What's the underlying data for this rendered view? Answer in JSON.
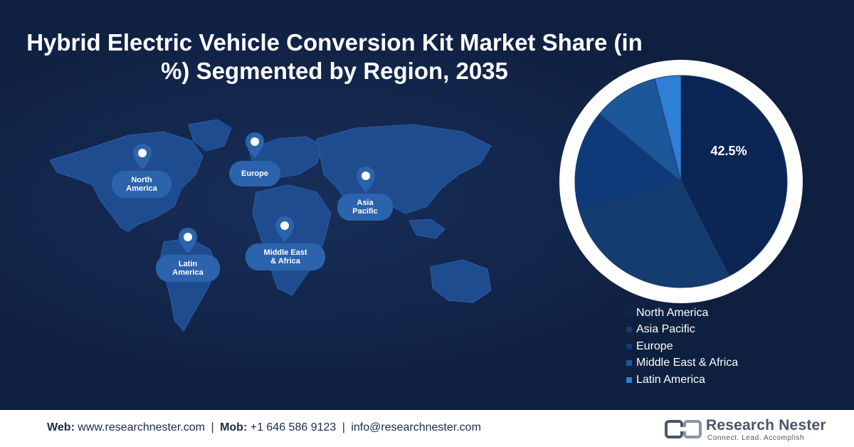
{
  "chart_data": {
    "type": "pie",
    "title": "Hybrid Electric Vehicle Conversion Kit Market Share (in %) Segmented by Region, 2035",
    "series": [
      {
        "name": "North America",
        "value": 42.5,
        "label": "42.5%",
        "color": "#0b2554"
      },
      {
        "name": "Asia Pacific",
        "value": 28.0,
        "label": "",
        "color": "#143c6e"
      },
      {
        "name": "Europe",
        "value": 15.5,
        "label": "",
        "color": "#0e3a7a"
      },
      {
        "name": "Middle East & Africa",
        "value": 10.0,
        "label": "",
        "color": "#1c5799"
      },
      {
        "name": "Latin America",
        "value": 4.0,
        "label": "",
        "color": "#2f7fd6"
      }
    ],
    "legend_position": "bottom-right"
  },
  "map": {
    "regions": [
      {
        "label": "North\nAmerica",
        "icon": "location-pin-icon"
      },
      {
        "label": "Europe",
        "icon": "location-pin-icon"
      },
      {
        "label": "Asia\nPacific",
        "icon": "location-pin-icon"
      },
      {
        "label": "Latin\nAmerica",
        "icon": "location-pin-icon"
      },
      {
        "label": "Middle East\n& Africa",
        "icon": "location-pin-icon"
      }
    ]
  },
  "footer": {
    "web_label": "Web:",
    "web_value": "www.researchnester.com",
    "mob_label": "Mob:",
    "mob_value": "+1 646 586 9123",
    "email_value": "info@researchnester.com",
    "separator": "|"
  },
  "brand": {
    "name": "Research Nester",
    "tagline": "Connect. Lead. Accomplish"
  },
  "colors": {
    "background": "#0f1f3f",
    "map_fill": "#1f4c8f",
    "pill": "#2c63ad"
  }
}
